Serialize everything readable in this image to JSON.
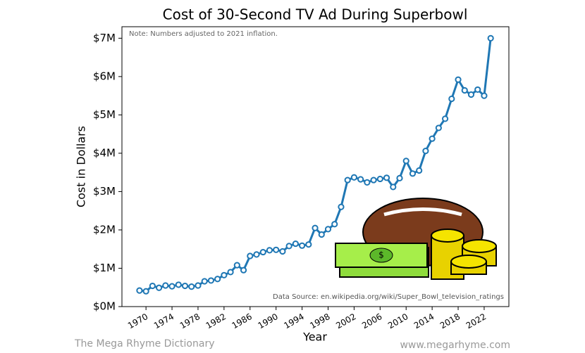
{
  "chart_data": {
    "type": "line",
    "title": "Cost of 30-Second TV Ad During Superbowl",
    "note": "Note: Numbers adjusted to 2021 inflation.",
    "source": "Data Source: en.wikipedia.org/wiki/Super_Bowl_television_ratings",
    "x_label": "Year",
    "y_label": "Cost in Dollars",
    "footer_left": "The Mega Rhyme Dictionary",
    "footer_right": "www.megarhyme.com",
    "x": [
      1969,
      1970,
      1971,
      1972,
      1973,
      1974,
      1975,
      1976,
      1977,
      1978,
      1979,
      1980,
      1981,
      1982,
      1983,
      1984,
      1985,
      1986,
      1987,
      1988,
      1989,
      1990,
      1991,
      1992,
      1993,
      1994,
      1995,
      1996,
      1997,
      1998,
      1999,
      2000,
      2001,
      2002,
      2003,
      2004,
      2005,
      2006,
      2007,
      2008,
      2009,
      2010,
      2011,
      2012,
      2013,
      2014,
      2015,
      2016,
      2017,
      2018,
      2019,
      2020,
      2021,
      2022,
      2023
    ],
    "series": [
      {
        "name": "Cost",
        "color": "#1f77b4",
        "values": [
          420000,
          400000,
          540000,
          490000,
          550000,
          530000,
          570000,
          540000,
          520000,
          550000,
          660000,
          680000,
          720000,
          820000,
          900000,
          1080000,
          950000,
          1320000,
          1360000,
          1420000,
          1470000,
          1480000,
          1440000,
          1580000,
          1640000,
          1590000,
          1620000,
          2050000,
          1880000,
          2020000,
          2150000,
          2600000,
          3300000,
          3370000,
          3320000,
          3240000,
          3300000,
          3330000,
          3360000,
          3120000,
          3350000,
          3800000,
          3470000,
          3550000,
          4060000,
          4380000,
          4660000,
          4900000,
          5420000,
          5920000,
          5640000,
          5530000,
          5660000,
          5500000,
          7000000
        ]
      }
    ],
    "xlim": [
      1966.3,
      2025.8
    ],
    "xticks": [
      1970,
      1974,
      1978,
      1982,
      1986,
      1990,
      1994,
      1998,
      2002,
      2006,
      2010,
      2014,
      2018,
      2022
    ],
    "ylim": [
      0,
      7300000
    ],
    "yticks": [
      {
        "value": 0,
        "label": "$0M"
      },
      {
        "value": 1000000,
        "label": "$1M"
      },
      {
        "value": 2000000,
        "label": "$2M"
      },
      {
        "value": 3000000,
        "label": "$3M"
      },
      {
        "value": 4000000,
        "label": "$4M"
      },
      {
        "value": 5000000,
        "label": "$5M"
      },
      {
        "value": 6000000,
        "label": "$6M"
      },
      {
        "value": 7000000,
        "label": "$7M"
      }
    ],
    "grid": false
  }
}
